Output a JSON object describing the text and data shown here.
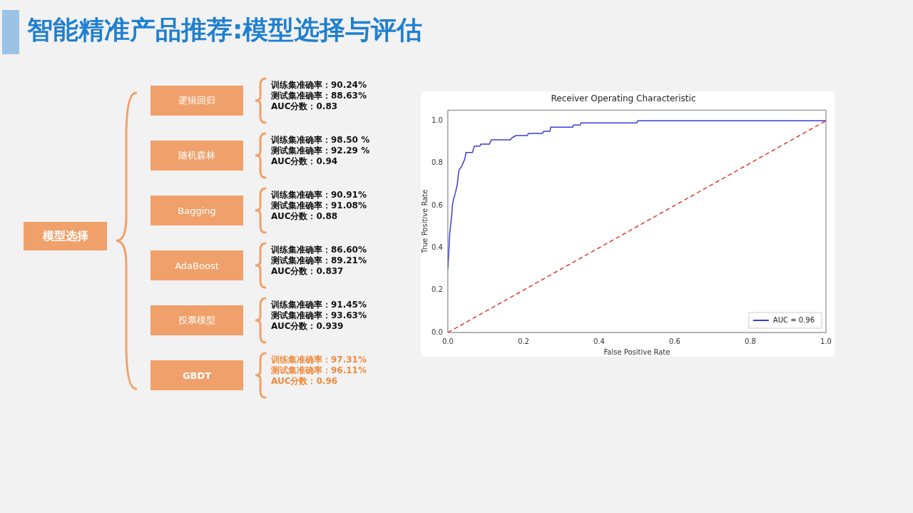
{
  "chart_data": [
    {
      "type": "other",
      "title": "智能精准产品推荐:模型选择与评估",
      "annotations": [
        "模型选择",
        "逻辑回归",
        "训练集准确率：90.24%",
        "测试集准确率：88.63%",
        "AUC分数：0.83",
        "随机森林",
        "训练集准确率：98.50 %",
        "测试集准确率：92.29 %",
        "AUC分数：0.94",
        "Bagging",
        "训练集准确率：90.91%",
        "测试集准确率：91.08%",
        "AUC分数：0.88",
        "AdaBoost",
        "训练集准确率：86.60%",
        "测试集准确率：89.21%",
        "AUC分数：0.837",
        "投票模型",
        "训练集准确率：91.45%",
        "测试集准确率：93.63%",
        "AUC分数：0.939",
        "GBDT",
        "训练集准确率：97.31%",
        "测试集准确率：96.11%",
        "AUC分数：0.96"
      ]
    },
    {
      "type": "line",
      "title": "Receiver Operating Characteristic",
      "xlabel": "False Positive Rate",
      "ylabel": "True Positive Rate",
      "xlim": [
        0,
        1
      ],
      "ylim": [
        0,
        1.05
      ],
      "xticks": [
        {
          "value": 0,
          "label": "0.0"
        },
        {
          "value": 0.2,
          "label": "0.2"
        },
        {
          "value": 0.4,
          "label": "0.4"
        },
        {
          "value": 0.6,
          "label": "0.6"
        },
        {
          "value": 0.8,
          "label": "0.8"
        },
        {
          "value": 1,
          "label": "1.0"
        }
      ],
      "yticks": [
        {
          "value": 0,
          "label": "0.0"
        },
        {
          "value": 0.2,
          "label": "0.2"
        },
        {
          "value": 0.4,
          "label": "0.4"
        },
        {
          "value": 0.6,
          "label": "0.6"
        },
        {
          "value": 0.8,
          "label": "0.8"
        },
        {
          "value": 1,
          "label": "1.0"
        }
      ],
      "grid": false,
      "legend": "bottom right",
      "marker": "none",
      "series": [
        {
          "name": "AUC = 0.96",
          "color": "#3b3bd6",
          "line_style": "solid",
          "x": [
            0,
            0.003,
            0.005,
            0.01,
            0.012,
            0.015,
            0.02,
            0.025,
            0.028,
            0.03,
            0.035,
            0.04,
            0.045,
            0.048,
            0.065,
            0.07,
            0.085,
            0.087,
            0.11,
            0.115,
            0.165,
            0.17,
            0.18,
            0.21,
            0.213,
            0.25,
            0.253,
            0.27,
            0.272,
            0.33,
            0.332,
            0.35,
            0.352,
            0.5,
            0.502,
            1
          ],
          "values": [
            0.3,
            0.4,
            0.47,
            0.55,
            0.6,
            0.63,
            0.66,
            0.7,
            0.75,
            0.77,
            0.78,
            0.8,
            0.82,
            0.85,
            0.85,
            0.88,
            0.88,
            0.89,
            0.89,
            0.91,
            0.91,
            0.92,
            0.93,
            0.93,
            0.94,
            0.94,
            0.95,
            0.95,
            0.97,
            0.97,
            0.98,
            0.98,
            0.99,
            0.99,
            1,
            1
          ]
        },
        {
          "color": "#e0392b",
          "line_style": "dashed",
          "x": [
            0,
            1
          ],
          "values": [
            0,
            1
          ]
        }
      ]
    }
  ]
}
